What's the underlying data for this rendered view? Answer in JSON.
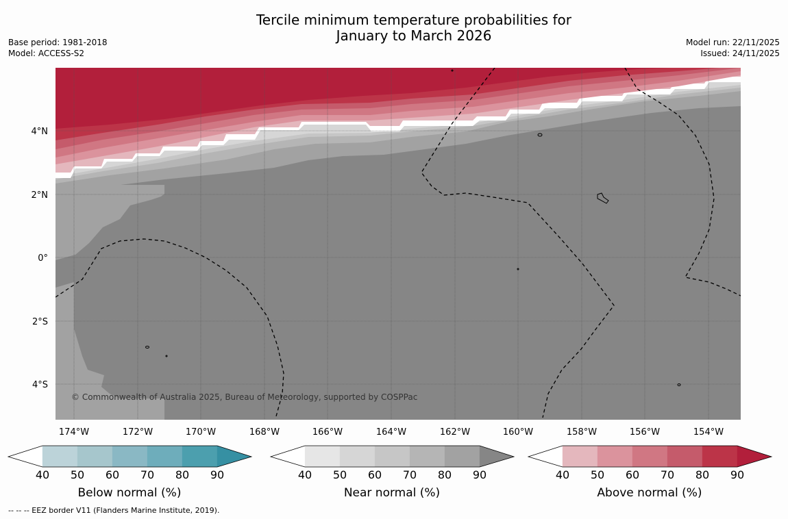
{
  "title": {
    "line1": "Tercile minimum temperature probabilities for",
    "line2": "January to March 2026"
  },
  "meta": {
    "base_period": "Base period: 1981-2018",
    "model": "Model: ACCESS-S2",
    "model_run": "Model run: 22/11/2025",
    "issued": "Issued: 24/11/2025"
  },
  "map": {
    "copyright": "© Commonwealth of Australia 2025, Bureau of Meteorology, supported by COSPPac",
    "lat_labels": [
      "4°N",
      "2°N",
      "0°",
      "2°S",
      "4°S"
    ],
    "lon_labels": [
      "174°W",
      "172°W",
      "170°W",
      "168°W",
      "166°W",
      "164°W",
      "162°W",
      "160°W",
      "158°W",
      "156°W",
      "154°W"
    ]
  },
  "colorbars": [
    {
      "label": "Below normal (%)",
      "ticks": [
        "40",
        "50",
        "60",
        "70",
        "80",
        "90"
      ],
      "colors": [
        "#ffffff",
        "#bcd3d9",
        "#a6c6cc",
        "#8ab8c4",
        "#6eadbb",
        "#4c9fae",
        "#3690a3"
      ]
    },
    {
      "label": "Near normal (%)",
      "ticks": [
        "40",
        "50",
        "60",
        "70",
        "80",
        "90"
      ],
      "colors": [
        "#ffffff",
        "#e6e6e6",
        "#d6d6d6",
        "#c6c6c6",
        "#b5b5b5",
        "#a2a2a2",
        "#868686"
      ]
    },
    {
      "label": "Above normal (%)",
      "ticks": [
        "40",
        "50",
        "60",
        "70",
        "80",
        "90"
      ],
      "colors": [
        "#ffffff",
        "#e4b7bd",
        "#db939d",
        "#d07783",
        "#c55b6b",
        "#bc3448",
        "#b21f3b"
      ]
    }
  ],
  "footnote": "--  --  -- EEZ border V11 (Flanders Marine Institute, 2019)."
}
